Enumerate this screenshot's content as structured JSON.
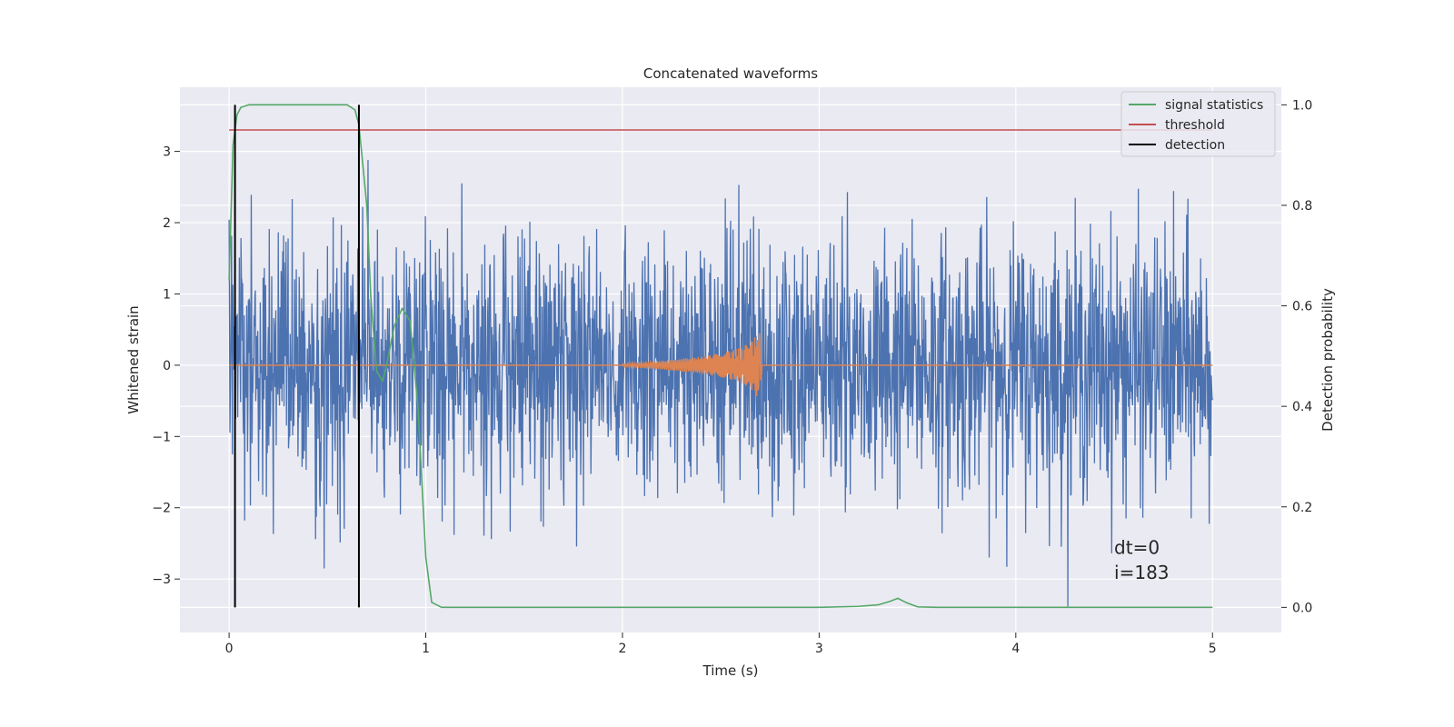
{
  "chart_data": {
    "type": "line",
    "title": "Concatenated waveforms",
    "xlabel": "Time (s)",
    "ylabel": "Whitened strain",
    "y2label": "Detection probability",
    "xlim": [
      -0.25,
      5.35
    ],
    "ylim": [
      -3.75,
      3.9
    ],
    "y2lim": [
      -0.05,
      1.035
    ],
    "xticks": [
      0,
      1,
      2,
      3,
      4,
      5
    ],
    "yticks": [
      -3,
      -2,
      -1,
      0,
      1,
      2,
      3
    ],
    "y2ticks": [
      0.0,
      0.2,
      0.4,
      0.6,
      0.8,
      1.0
    ],
    "ytick_labels": [
      "−3",
      "−2",
      "−1",
      "0",
      "1",
      "2",
      "3"
    ],
    "y2tick_labels": [
      "0.0",
      "0.2",
      "0.4",
      "0.6",
      "0.8",
      "1.0"
    ],
    "grid": true,
    "legend": {
      "position": "top-right",
      "entries": [
        {
          "label": "signal statistics",
          "color": "#55a868"
        },
        {
          "label": "threshold",
          "color": "#c44e52"
        },
        {
          "label": "detection",
          "color": "#000000"
        }
      ]
    },
    "series": [
      {
        "role": "noise",
        "axis": "left",
        "color": "#4c72b0",
        "x_range": [
          0,
          5
        ],
        "note_peaks": {
          "max": 3.55,
          "min": -3.4
        }
      },
      {
        "role": "waveform",
        "axis": "left",
        "color": "#dd8452",
        "x": [
          2.0,
          2.1,
          2.2,
          2.3,
          2.4,
          2.5,
          2.6,
          2.65,
          2.7,
          2.71
        ],
        "amplitude": [
          0.02,
          0.04,
          0.06,
          0.09,
          0.12,
          0.17,
          0.25,
          0.32,
          0.5,
          0.0
        ]
      },
      {
        "name": "signal statistics",
        "axis": "right",
        "color": "#55a868",
        "x": [
          0.0,
          0.02,
          0.04,
          0.06,
          0.1,
          0.2,
          0.4,
          0.6,
          0.64,
          0.66,
          0.7,
          0.72,
          0.75,
          0.78,
          0.8,
          0.84,
          0.88,
          0.92,
          0.96,
          1.0,
          1.03,
          1.08,
          1.2,
          2.0,
          3.0,
          3.2,
          3.3,
          3.36,
          3.4,
          3.44,
          3.5,
          3.6,
          4.0,
          5.0
        ],
        "y": [
          0.65,
          0.92,
          0.98,
          0.995,
          1.0,
          1.0,
          1.0,
          1.0,
          0.99,
          0.96,
          0.8,
          0.62,
          0.47,
          0.45,
          0.48,
          0.56,
          0.595,
          0.57,
          0.4,
          0.1,
          0.01,
          0.0,
          0.0,
          0.0,
          0.0,
          0.002,
          0.005,
          0.012,
          0.018,
          0.01,
          0.001,
          0.0,
          0.0,
          0.0
        ]
      },
      {
        "name": "threshold",
        "axis": "right",
        "color": "#c44e52",
        "x": [
          0,
          5
        ],
        "y": [
          0.95,
          0.95
        ]
      },
      {
        "name": "detection",
        "axis": "right",
        "color": "#000000",
        "vlines": [
          0.03,
          0.66
        ],
        "y_range": [
          0.0,
          1.0
        ]
      }
    ],
    "annotations": [
      {
        "text": "dt=0",
        "x": 4.5,
        "y": -2.65
      },
      {
        "text": "i=183",
        "x": 4.5,
        "y": -3.0
      }
    ]
  }
}
